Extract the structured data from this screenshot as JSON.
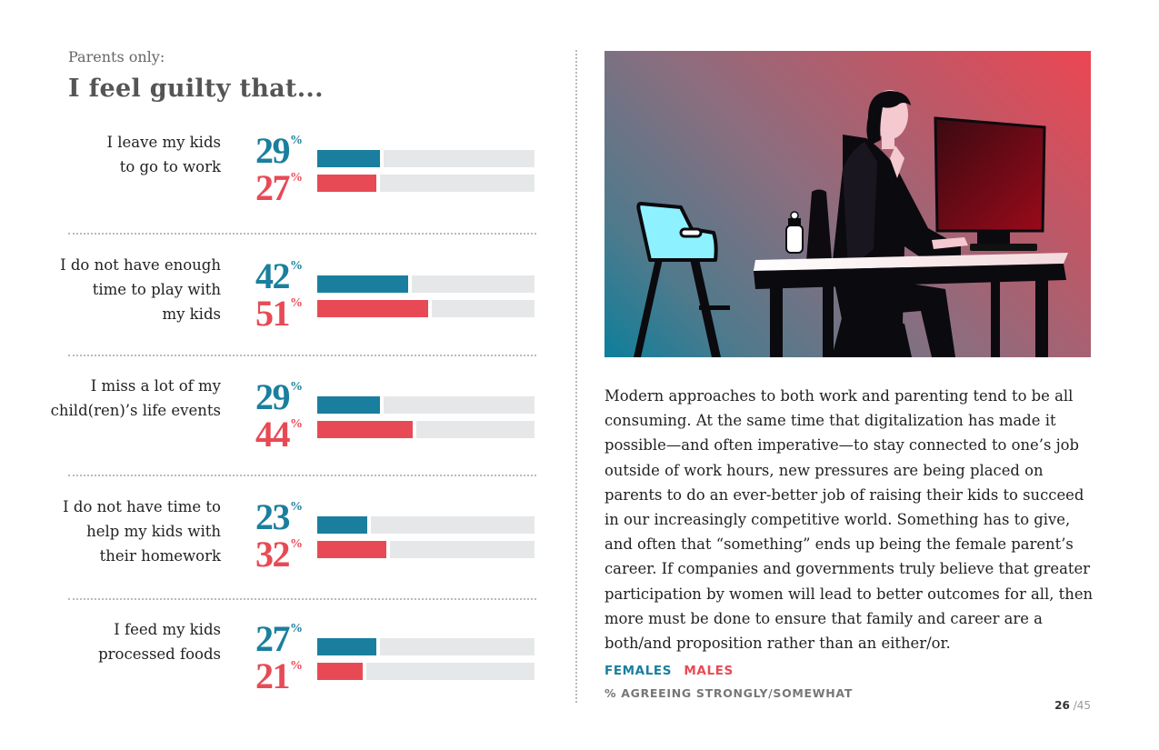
{
  "header": {
    "subtitle": "Parents only:",
    "title": "I feel guilty that..."
  },
  "colors": {
    "females": "#1a7f9e",
    "males": "#e84a55",
    "track": "#e6e7e8"
  },
  "chart_data": {
    "type": "bar",
    "orientation": "horizontal",
    "title": "I feel guilty that...",
    "subtitle": "Parents only:",
    "unit": "%",
    "xlim": [
      0,
      100
    ],
    "categories": [
      [
        "I leave my kids",
        "to go to work"
      ],
      [
        "I do not have enough",
        "time to play with",
        "my kids"
      ],
      [
        "I miss a lot of my",
        "child(ren)’s life events"
      ],
      [
        "I do not have time to",
        "help my kids with",
        "their homework"
      ],
      [
        "I feed my kids",
        "processed foods"
      ]
    ],
    "series": [
      {
        "name": "FEMALES",
        "values": [
          29,
          42,
          29,
          23,
          27
        ]
      },
      {
        "name": "MALES",
        "values": [
          27,
          51,
          44,
          32,
          21
        ]
      }
    ],
    "percent_symbol": "%"
  },
  "article": {
    "text": "Modern approaches to both work and parenting tend to be all consuming. At the same time that digitalization has made it possible—and often imperative—to stay connected to one’s job outside of work hours, new pressures are being placed on parents to do an ever-better job of raising their kids to succeed in our increasingly competitive world. Something has to give, and often that “something” ends up being the female parent’s career. If companies and governments truly believe that greater participation by women will lead to better outcomes for all, then more must be done to ensure that family and career are a both/and proposition rather than an either/or."
  },
  "legend": {
    "females": "FEMALES",
    "males": "MALES",
    "note": "% AGREEING STRONGLY/SOMEWHAT"
  },
  "page": {
    "current": "26",
    "total": "/45"
  }
}
